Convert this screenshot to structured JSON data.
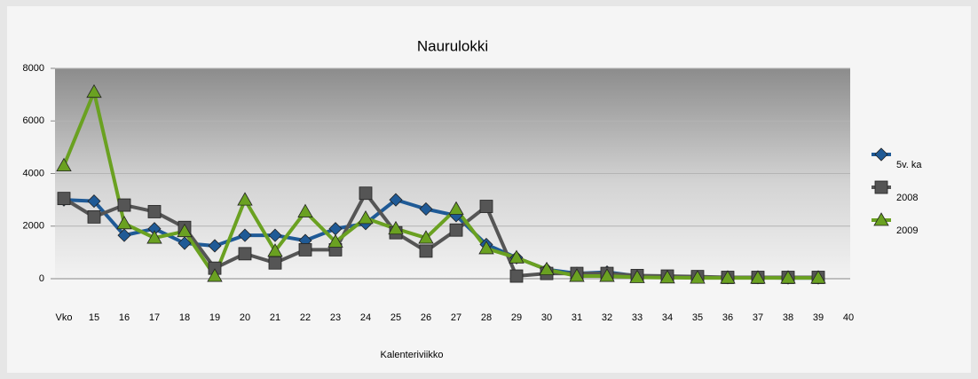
{
  "chart_data": {
    "type": "line",
    "title": "Naurulokki",
    "x_label": "Kalenteriviikko",
    "categories": [
      "Vko",
      "15",
      "16",
      "17",
      "18",
      "19",
      "20",
      "21",
      "22",
      "23",
      "24",
      "25",
      "26",
      "27",
      "28",
      "29",
      "30",
      "31",
      "32",
      "33",
      "34",
      "35",
      "36",
      "37",
      "38",
      "39",
      "40"
    ],
    "series": [
      {
        "name": "5v. ka",
        "color": "#1f5a96",
        "marker": "diamond",
        "values": [
          3000,
          2950,
          1650,
          1900,
          1350,
          1250,
          1650,
          1650,
          1450,
          1900,
          2100,
          3000,
          2650,
          2400,
          1300,
          800,
          350,
          200,
          250,
          100,
          80,
          60,
          40,
          40,
          30,
          30,
          null
        ]
      },
      {
        "name": "2008",
        "color": "#555555",
        "marker": "square",
        "values": [
          3050,
          2350,
          2800,
          2550,
          1950,
          400,
          950,
          600,
          1100,
          1100,
          3250,
          1750,
          1050,
          1850,
          2750,
          100,
          200,
          200,
          200,
          120,
          100,
          80,
          50,
          50,
          50,
          50,
          null
        ]
      },
      {
        "name": "2009",
        "color": "#6aa121",
        "marker": "triangle",
        "values": [
          4300,
          7100,
          2100,
          1550,
          1800,
          100,
          3000,
          1050,
          2550,
          1400,
          2300,
          1900,
          1550,
          2650,
          1150,
          800,
          350,
          100,
          100,
          50,
          40,
          30,
          30,
          30,
          30,
          30,
          null
        ]
      }
    ],
    "ylim": [
      0,
      8000
    ],
    "yticks": [
      0,
      2000,
      4000,
      6000,
      8000
    ],
    "grid": true,
    "legend": "right"
  }
}
